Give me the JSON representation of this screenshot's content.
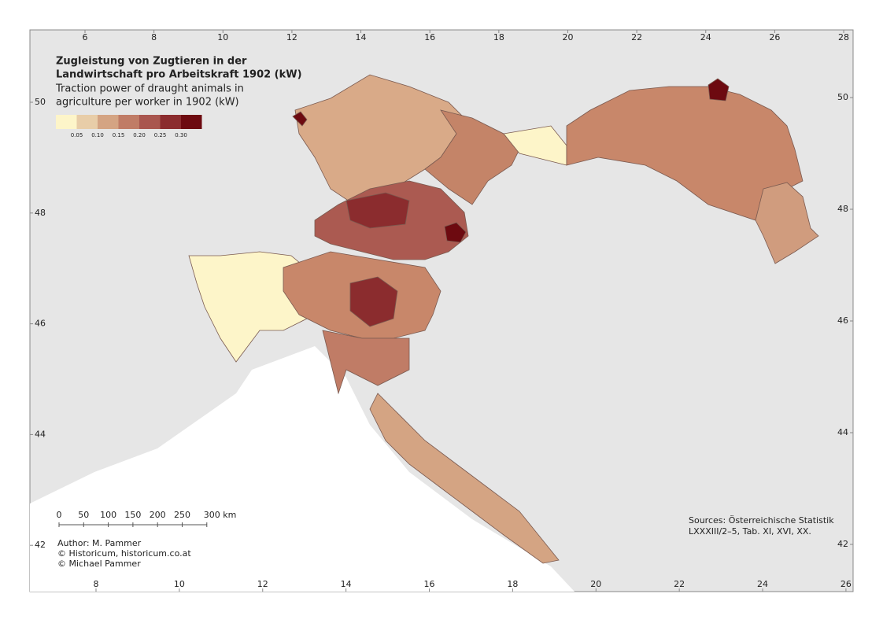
{
  "map": {
    "title_de": [
      "Zugleistung von Zugtieren in der",
      "Landwirtschaft pro Arbeitskraft 1902 (kW)"
    ],
    "title_en": [
      "Traction power of draught animals in",
      "agriculture per worker in 1902 (kW)"
    ],
    "legend": {
      "colors": [
        "#fdf5c9",
        "#e8cda8",
        "#d4a483",
        "#c07c66",
        "#a9564f",
        "#8b2c2e",
        "#6d0a10"
      ],
      "labels": [
        "0.05",
        "0.10",
        "0.15",
        "0.20",
        "0.25",
        "0.30"
      ]
    },
    "frame": {
      "top": [
        6,
        8,
        10,
        12,
        14,
        16,
        18,
        20,
        22,
        24,
        26,
        28
      ],
      "bottom": [
        8,
        10,
        12,
        14,
        16,
        18,
        20,
        22,
        24,
        26
      ],
      "left": [
        50,
        48,
        46,
        44,
        42
      ],
      "right": [
        50,
        48,
        46,
        44,
        42
      ]
    },
    "scale_bar": [
      "0",
      "50",
      "100",
      "150",
      "200",
      "250",
      "300 km"
    ],
    "credits": [
      "Author: M. Pammer",
      "© Historicum, historicum.co.at",
      "© Michael Pammer"
    ],
    "sources": [
      "Sources: Österreichische Statistik",
      "LXXXIII/2–5, Tab. XI, XVI, XX."
    ]
  }
}
